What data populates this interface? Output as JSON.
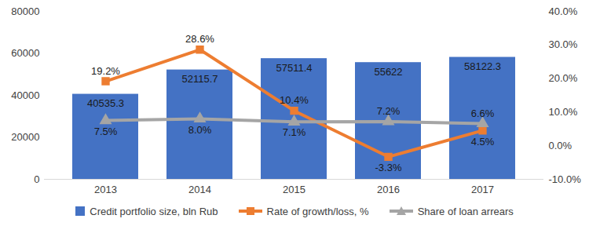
{
  "chart_data": {
    "type": "bar",
    "categories": [
      "2013",
      "2014",
      "2015",
      "2016",
      "2017"
    ],
    "series": [
      {
        "name": "Credit portfolio size, bln Rub",
        "type": "bar",
        "color": "#4472c4",
        "values": [
          40535.3,
          52115.7,
          57511.4,
          55622,
          58122.3
        ]
      },
      {
        "name": "Rate of growth/loss, %",
        "type": "line",
        "axis": "y2",
        "color": "#ed7d31",
        "marker": "square",
        "values": [
          19.2,
          28.6,
          10.4,
          -3.3,
          4.5
        ],
        "value_labels": [
          "19.2%",
          "28.6%",
          "10.4%",
          "-3.3%",
          "4.5%"
        ]
      },
      {
        "name": "Share of loan arrears",
        "type": "line",
        "axis": "y2",
        "color": "#a5a5a5",
        "marker": "triangle",
        "values": [
          7.5,
          8.0,
          7.1,
          7.2,
          6.6
        ],
        "value_labels": [
          "7.5%",
          "8.0%",
          "7.1%",
          "7.2%",
          "6.6%"
        ]
      }
    ],
    "ylim": [
      0,
      80000
    ],
    "yticks": [
      0,
      20000,
      40000,
      60000,
      80000
    ],
    "y2lim": [
      -10,
      40
    ],
    "y2ticks": [
      {
        "value": -10,
        "label": "-10.0%"
      },
      {
        "value": 0,
        "label": "0.0%"
      },
      {
        "value": 10,
        "label": "10.0%"
      },
      {
        "value": 20,
        "label": "20.0%"
      },
      {
        "value": 30,
        "label": "30.0%"
      },
      {
        "value": 40,
        "label": "40.0%"
      }
    ],
    "grid": false,
    "data_labels": true,
    "legend": "bottom"
  }
}
